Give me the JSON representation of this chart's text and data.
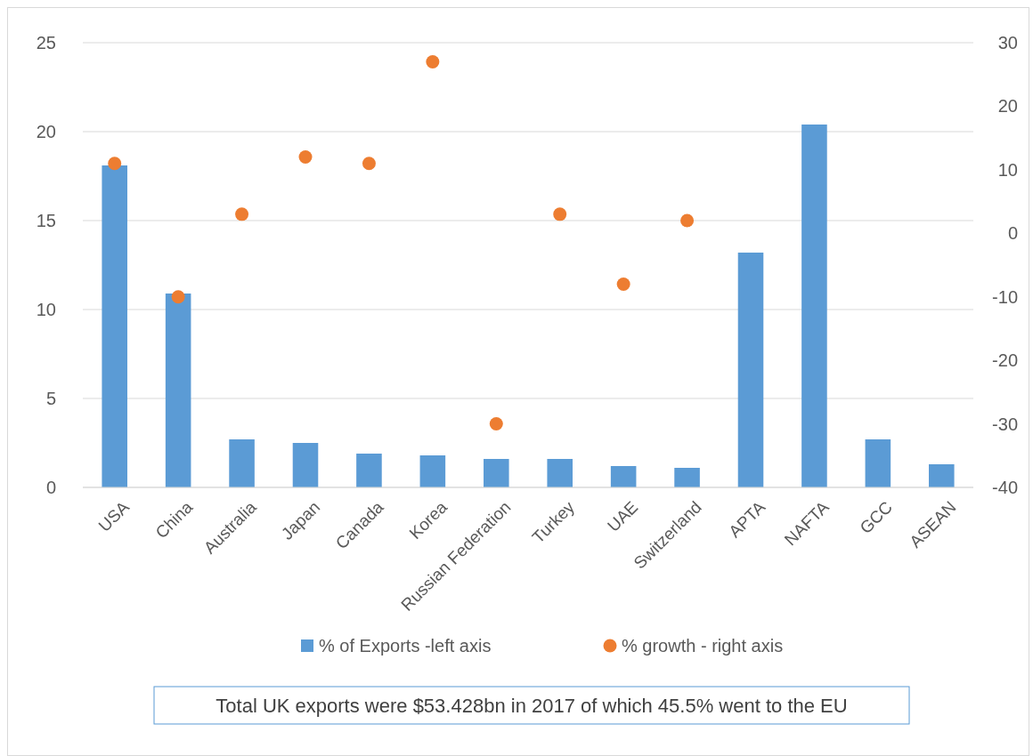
{
  "chart_data": {
    "type": "bar",
    "categories": [
      "USA",
      "China",
      "Australia",
      "Japan",
      "Canada",
      "Korea",
      "Russian Federation",
      "Turkey",
      "UAE",
      "Switzerland",
      "APTA",
      "NAFTA",
      "GCC",
      "ASEAN"
    ],
    "series": [
      {
        "name": "% of Exports -left axis",
        "color": "#5b9bd5",
        "values": [
          18.1,
          10.9,
          2.7,
          2.5,
          1.9,
          1.8,
          1.6,
          1.6,
          1.2,
          1.1,
          13.2,
          20.4,
          2.7,
          1.3
        ]
      },
      {
        "name": "% growth - right axis",
        "type": "scatter",
        "axis": "y2",
        "color": "#ed7d31",
        "values": [
          11,
          -10,
          3,
          12,
          11,
          27,
          -30,
          3,
          -8,
          2,
          null,
          null,
          null,
          null
        ]
      }
    ],
    "ylim": [
      0,
      25
    ],
    "yticks": [
      0,
      5,
      10,
      15,
      20,
      25
    ],
    "y2lim": [
      -40,
      30
    ],
    "y2ticks": [
      -40,
      -30,
      -20,
      -10,
      0,
      10,
      20,
      30
    ],
    "grid": "y",
    "legend": "bottom",
    "marker": "circle",
    "annotations": [
      "Total UK exports were $53.428bn in 2017 of which 45.5% went to the EU"
    ]
  }
}
